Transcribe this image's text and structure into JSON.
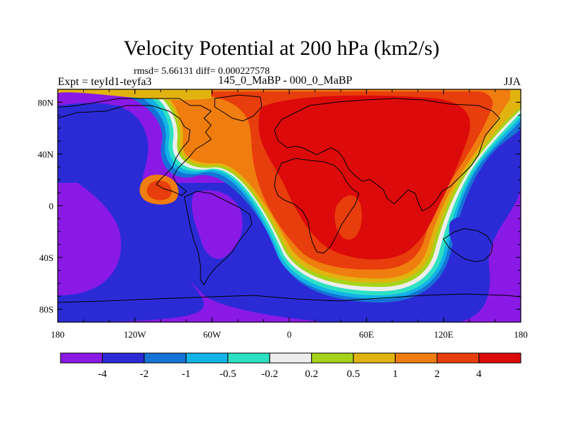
{
  "title": "Velocity Potential at 200 hPa (km2/s)",
  "stats_line": "rmsd= 5.66131 diff= 0.000227578",
  "left_label": "Expt = teyId1-teyfa3",
  "center_label": "145_0_MaBP - 000_0_MaBP",
  "right_label": "JJA",
  "map": {
    "lon_ticks": [
      "180",
      "120W",
      "60W",
      "0",
      "60E",
      "120E",
      "180"
    ],
    "lon_values": [
      -180,
      -120,
      -60,
      0,
      60,
      120,
      180
    ],
    "lat_ticks": [
      "80N",
      "40N",
      "0",
      "40S",
      "80S"
    ],
    "lat_values": [
      80,
      40,
      0,
      -40,
      -80
    ],
    "lat_range": [
      -90,
      90
    ],
    "lon_range": [
      -180,
      180
    ]
  },
  "colorbar": {
    "colors": [
      "#8a19e6",
      "#2b2bd6",
      "#1673d6",
      "#12b3e6",
      "#2ee0c4",
      "#ededed",
      "#a6d31a",
      "#e1b30f",
      "#f07d0f",
      "#e83d0c",
      "#dc0a0a"
    ],
    "labels": [
      "-4",
      "-2",
      "-1",
      "-0.5",
      "-0.2",
      "0.2",
      "0.5",
      "1",
      "2",
      "4"
    ]
  }
}
